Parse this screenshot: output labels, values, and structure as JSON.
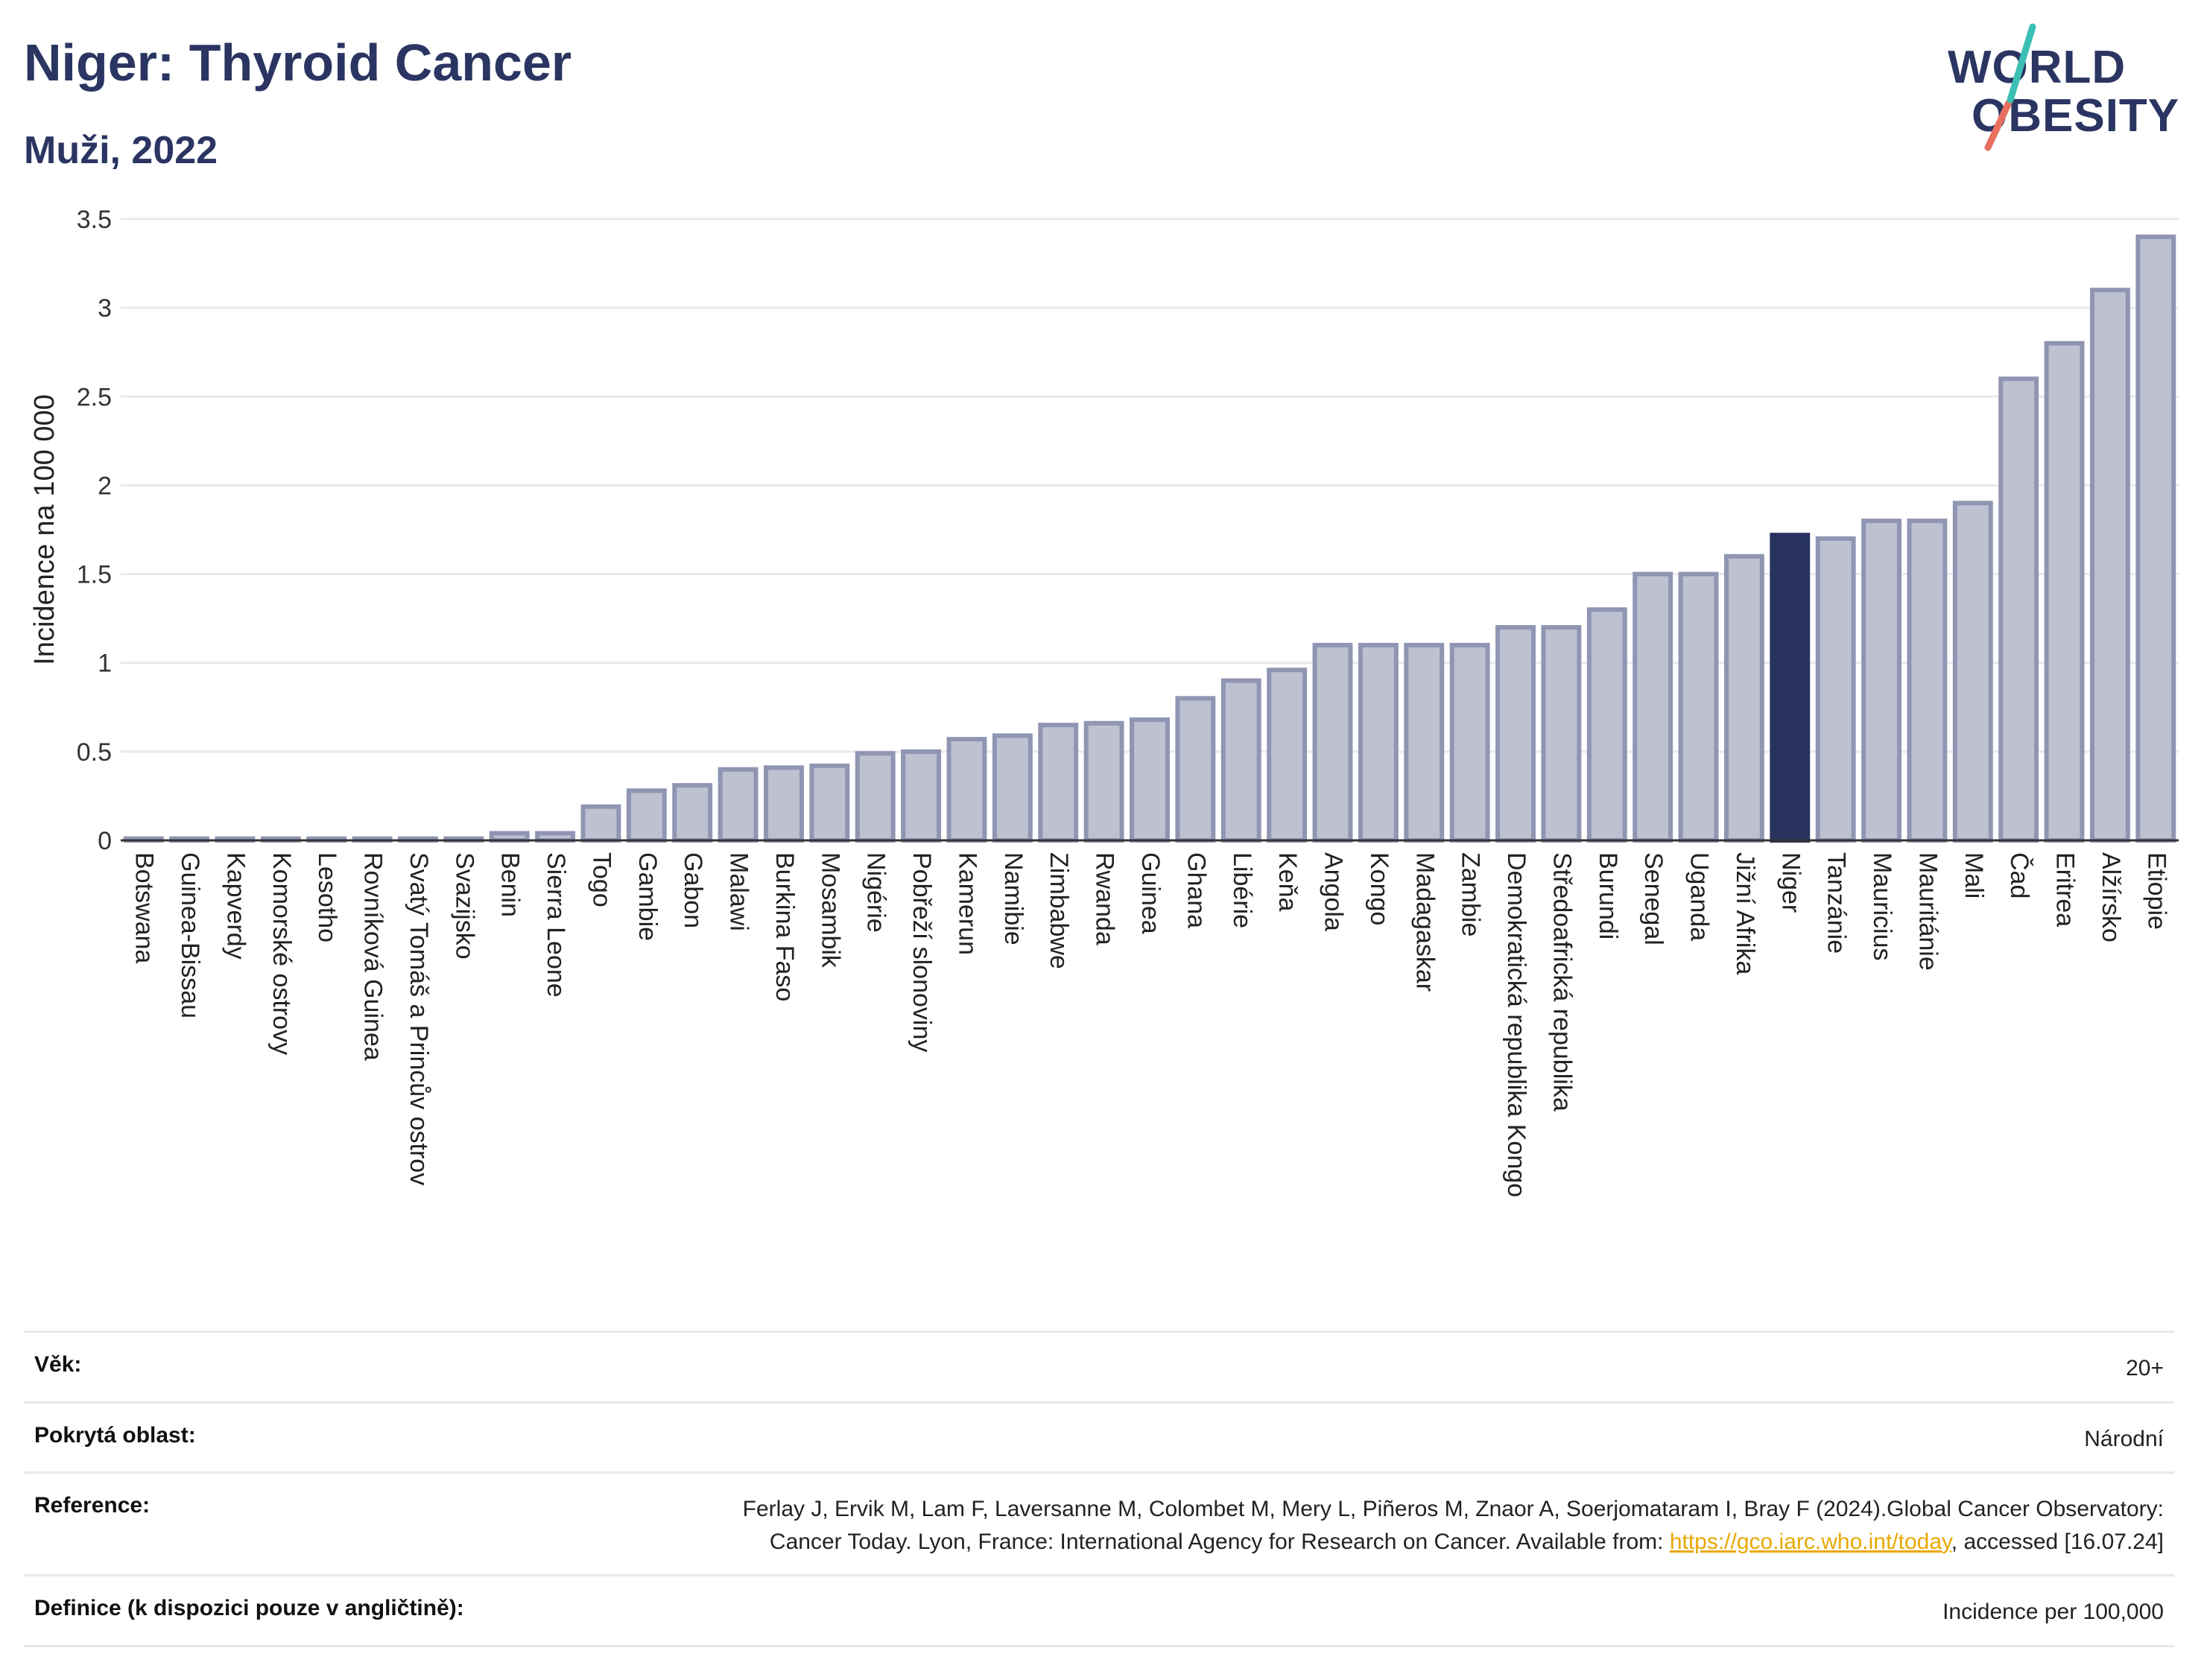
{
  "header": {
    "title": "Niger: Thyroid Cancer",
    "subtitle": "Muži, 2022"
  },
  "logo": {
    "line1": "WORLD",
    "line2": "OBESITY",
    "accent_colors": [
      "#3cbfb4",
      "#e8705f"
    ]
  },
  "colors": {
    "bar": "#bdc1d0",
    "bar_border": "#8f95b2",
    "highlight": "#27325f",
    "grid": "#e8e8ee",
    "axis_text": "#333333"
  },
  "chart_data": {
    "type": "bar",
    "ylabel": "Incidence na 100 000",
    "xlabel": "",
    "ylim": [
      0,
      3.5
    ],
    "yticks": [
      0,
      0.5,
      1,
      1.5,
      2,
      2.5,
      3,
      3.5
    ],
    "ytick_labels": [
      "0",
      "0.5",
      "1",
      "1.5",
      "2",
      "2.5",
      "3",
      "3.5"
    ],
    "grid": true,
    "highlight_category": "Niger",
    "categories": [
      "Botswana",
      "Guinea-Bissau",
      "Kapverdy",
      "Komorské ostrovy",
      "Lesotho",
      "Rovníková Guinea",
      "Svatý Tomáš a Princův ostrov",
      "Svazijsko",
      "Benin",
      "Sierra Leone",
      "Togo",
      "Gambie",
      "Gabon",
      "Malawi",
      "Burkina Faso",
      "Mosambik",
      "Nigérie",
      "Pobřeží slonoviny",
      "Kamerun",
      "Namibie",
      "Zimbabwe",
      "Rwanda",
      "Guinea",
      "Ghana",
      "Libérie",
      "Keňa",
      "Angola",
      "Kongo",
      "Madagaskar",
      "Zambie",
      "Demokratická republika Kongo",
      "Středoafrická republika",
      "Burundi",
      "Senegal",
      "Uganda",
      "Jižní Afrika",
      "Niger",
      "Tanzánie",
      "Mauricius",
      "Mauritánie",
      "Mali",
      "Čad",
      "Eritrea",
      "Alžírsko",
      "Etiopie"
    ],
    "values": [
      0.01,
      0.01,
      0.01,
      0.01,
      0.01,
      0.01,
      0.01,
      0.01,
      0.04,
      0.04,
      0.19,
      0.28,
      0.31,
      0.4,
      0.41,
      0.42,
      0.49,
      0.5,
      0.57,
      0.59,
      0.65,
      0.66,
      0.68,
      0.8,
      0.9,
      0.96,
      1.1,
      1.1,
      1.1,
      1.1,
      1.2,
      1.2,
      1.3,
      1.5,
      1.5,
      1.6,
      1.72,
      1.7,
      1.8,
      1.8,
      1.9,
      2.6,
      2.8,
      3.1,
      3.4
    ]
  },
  "info": [
    {
      "label": "Věk:",
      "value": "20+"
    },
    {
      "label": "Pokrytá oblast:",
      "value": "Národní"
    },
    {
      "label": "Reference:",
      "value_before": "Ferlay J, Ervik M, Lam F, Laversanne M, Colombet M, Mery L, Piñeros M, Znaor A, Soerjomataram I, Bray F (2024).Global Cancer Observatory: Cancer Today. Lyon, France: International Agency for Research on Cancer. Available from: ",
      "link": "https://gco.iarc.who.int/today",
      "value_after": ", accessed [16.07.24]"
    },
    {
      "label": "Definice (k dispozici pouze v angličtině):",
      "value": "Incidence per 100,000"
    }
  ]
}
